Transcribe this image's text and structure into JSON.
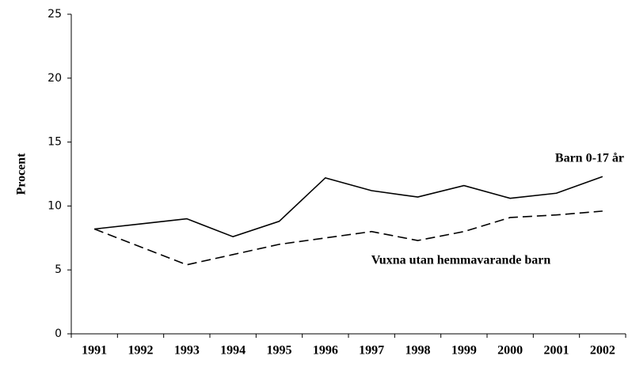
{
  "chart_data": {
    "type": "line",
    "y_label": "Procent",
    "categories": [
      "1991",
      "1992",
      "1993",
      "1994",
      "1995",
      "1996",
      "1997",
      "1998",
      "1999",
      "2000",
      "2001",
      "2002"
    ],
    "series": [
      {
        "name": "Barn 0-17 år",
        "color": "#000000",
        "dash": "solid",
        "values": [
          8.2,
          8.6,
          9.0,
          7.6,
          8.8,
          12.2,
          11.2,
          10.7,
          11.6,
          10.6,
          11.0,
          12.3
        ]
      },
      {
        "name": "Vuxna utan hemmavarande barn",
        "color": "#000000",
        "dash": "dashed",
        "values": [
          8.2,
          6.8,
          5.4,
          6.2,
          7.0,
          7.5,
          8.0,
          7.3,
          8.0,
          9.1,
          9.3,
          9.6
        ]
      }
    ],
    "ylim": [
      0,
      25
    ],
    "yticks": [
      0,
      5,
      10,
      15,
      20,
      25
    ],
    "grid": false
  }
}
